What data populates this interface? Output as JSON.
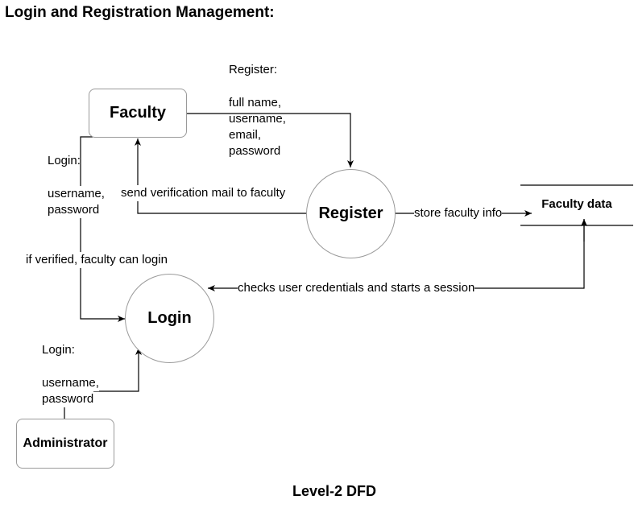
{
  "title": "Login and Registration Management:",
  "caption": "Level-2 DFD",
  "entities": {
    "faculty": "Faculty",
    "administrator": "Administrator"
  },
  "processes": {
    "register": "Register",
    "login": "Login"
  },
  "data_store": {
    "name": "Faculty data"
  },
  "flows": {
    "register_heading": "Register:",
    "register_fields": [
      "full name,",
      "username,",
      "email,",
      "password"
    ],
    "faculty_login_heading": "Login:",
    "faculty_login_fields": [
      "username,",
      "password"
    ],
    "verification_mail": "send verification mail to faculty",
    "store_info": "store faculty info",
    "if_verified": "if verified, faculty can login",
    "check_credentials": "checks user credentials and starts a session",
    "admin_login_heading": "Login:",
    "admin_login_fields": [
      "username,",
      "password"
    ]
  }
}
